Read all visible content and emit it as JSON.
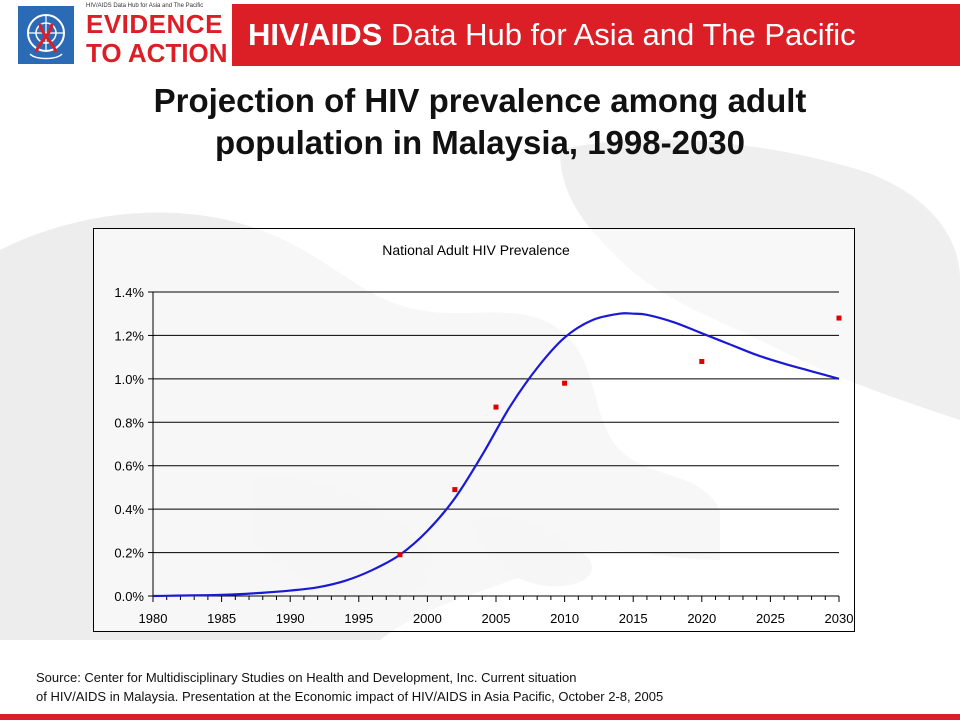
{
  "header": {
    "logo_small_text": "HIV/AIDS Data Hub for Asia and The Pacific",
    "logo_line1": "EVIDENCE",
    "logo_line2": "TO ACTION",
    "hub_title_bold": "HIV/AIDS",
    "hub_title_rest": " Data Hub for Asia and The Pacific",
    "brand_color": "#dc1f26",
    "emblem_color": "#2b6bb5"
  },
  "slide": {
    "title_line1": "Projection of HIV prevalence among adult",
    "title_line2": "population in Malaysia, 1998-2030"
  },
  "chart_data": {
    "type": "line",
    "title": "National Adult HIV Prevalence",
    "xlabel": "",
    "ylabel": "",
    "xlim": [
      1980,
      2030
    ],
    "ylim": [
      0,
      1.4
    ],
    "grid": true,
    "x_ticks": [
      "1980",
      "1985",
      "1990",
      "1995",
      "2000",
      "2005",
      "2010",
      "2015",
      "2020",
      "2025",
      "2030"
    ],
    "y_ticks": [
      "0.0%",
      "0.2%",
      "0.4%",
      "0.6%",
      "0.8%",
      "1.0%",
      "1.2%",
      "1.4%"
    ],
    "series": [
      {
        "kind": "line",
        "color": "#1a1ad6",
        "x": [
          1980,
          1985,
          1988,
          1990,
          1992,
          1994,
          1996,
          1998,
          2000,
          2002,
          2004,
          2006,
          2008,
          2010,
          2012,
          2014,
          2015,
          2016,
          2018,
          2020,
          2022,
          2024,
          2026,
          2028,
          2030
        ],
        "values": [
          0.0,
          0.005,
          0.015,
          0.025,
          0.04,
          0.07,
          0.12,
          0.19,
          0.3,
          0.45,
          0.65,
          0.87,
          1.05,
          1.19,
          1.27,
          1.3,
          1.3,
          1.295,
          1.26,
          1.21,
          1.16,
          1.11,
          1.07,
          1.035,
          1.0
        ]
      },
      {
        "kind": "points",
        "color": "#e00000",
        "x": [
          1998,
          2002,
          2005,
          2010,
          2020,
          2030
        ],
        "values": [
          0.19,
          0.49,
          0.87,
          0.98,
          1.08,
          1.28
        ]
      }
    ]
  },
  "source": {
    "line1": "Source: Center for Multidisciplinary Studies on Health and Development, Inc. Current situation",
    "line2": "of HIV/AIDS in Malaysia. Presentation at the Economic impact of HIV/AIDS in Asia Pacific, October 2-8, 2005"
  }
}
